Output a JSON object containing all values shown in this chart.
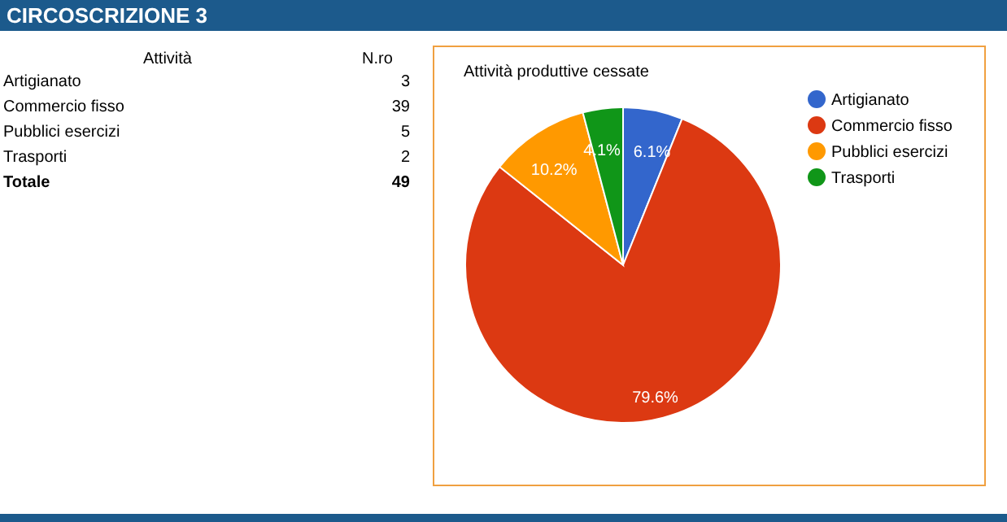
{
  "chart_data": [
    {
      "type": "other",
      "title": "CIRCOSCRIZIONE 3",
      "categories": [
        "Artigianato",
        "Commercio fisso",
        "Pubblici esercizi",
        "Trasporti"
      ],
      "values": [
        3,
        39,
        5,
        2
      ],
      "data_labels": true,
      "annotations": [
        "Attività",
        "N.ro",
        "Totale",
        "49"
      ]
    },
    {
      "type": "pie",
      "title": "Attività produttive cessate",
      "categories": [
        "Artigianato",
        "Commercio fisso",
        "Pubblici esercizi",
        "Trasporti"
      ],
      "values": [
        6.1,
        79.6,
        10.2,
        4.1
      ],
      "colors": [
        "#3366cc",
        "#dc3912",
        "#ff9900",
        "#109618"
      ],
      "value_labels": [
        "6.1%",
        "79.6%",
        "10.2%",
        "4.1%"
      ],
      "legend": "right"
    }
  ]
}
